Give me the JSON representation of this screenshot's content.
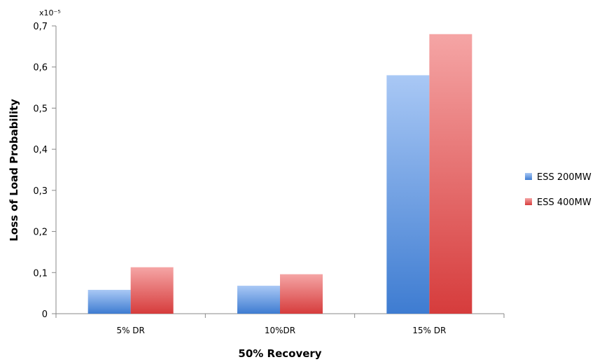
{
  "chart_data": {
    "type": "bar",
    "categories": [
      "5% DR",
      "10%DR",
      "15% DR"
    ],
    "series": [
      {
        "name": "ESS 200MW",
        "values": [
          0.058,
          0.068,
          0.58
        ],
        "color": "#5b8fd6"
      },
      {
        "name": "ESS 400MW",
        "values": [
          0.113,
          0.096,
          0.68
        ],
        "color": "#e05a5a"
      }
    ],
    "xlabel": "50% Recovery",
    "ylabel": "Loss of Load Probability",
    "y_multiplier_label": "x10⁻⁵",
    "ylim": [
      0,
      0.7
    ],
    "yticks": [
      0,
      0.1,
      0.2,
      0.3,
      0.4,
      0.5,
      0.6,
      0.7
    ],
    "ytick_labels": [
      "0",
      "0,1",
      "0,2",
      "0,3",
      "0,4",
      "0,5",
      "0,6",
      "0,7"
    ],
    "grid": false,
    "legend_position": "right"
  }
}
